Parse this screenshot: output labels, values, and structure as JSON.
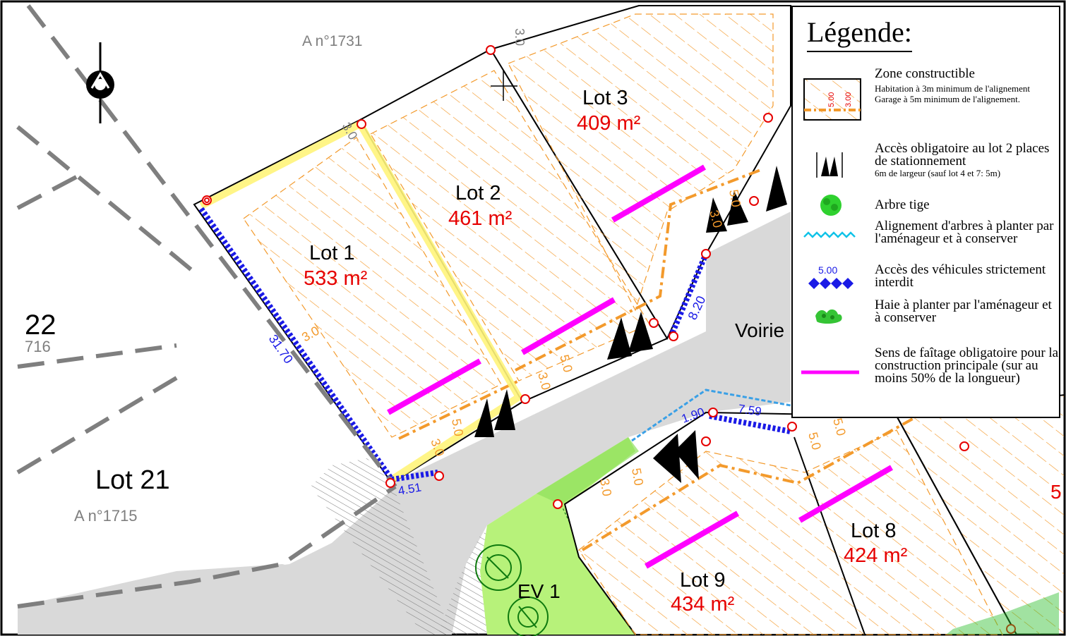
{
  "parcels": {
    "top_ref": "A n°1731",
    "left_ref": "A n°1715",
    "left_lot": "Lot 21",
    "left_number": "22",
    "left_partial_ref": "716"
  },
  "lots": [
    {
      "name": "Lot 1",
      "area": "533 m²"
    },
    {
      "name": "Lot 2",
      "area": "461 m²"
    },
    {
      "name": "Lot 3",
      "area": "409 m²"
    },
    {
      "name": "Lot 8",
      "area": "424 m²"
    },
    {
      "name": "Lot 9",
      "area": "434 m²"
    }
  ],
  "areas": {
    "green_space": "EV 1",
    "road": "Voirie"
  },
  "dimensions": [
    "3.0",
    "3.0",
    "3.0",
    "5.0",
    "3.0",
    "5.0",
    "3.0",
    "5.0",
    "3.0",
    "5.0",
    "3.0",
    "5.0",
    "3.0",
    "5.0",
    "5.0",
    "5.0"
  ],
  "measures": {
    "d1": "31.70",
    "d2": "4.51",
    "d3": "8.20",
    "d4": "1.90",
    "d5": "7.59"
  },
  "edge_fragment": "5",
  "legend": {
    "title": "Légende:",
    "items": [
      {
        "key": "zone",
        "label": "Zone constructible",
        "notes": [
          "Habitation à 3m minimum de l'alignement",
          "Garage à 5m minimum de l'alignement."
        ],
        "sym_values": [
          "5.00",
          "3.00"
        ]
      },
      {
        "key": "access",
        "label": "Accès obligatoire au lot 2 places de stationnement",
        "note": "6m de largeur (sauf lot 4 et 7: 5m)"
      },
      {
        "key": "tree",
        "label": "Arbre tige"
      },
      {
        "key": "tree_row",
        "label": "Alignement d'arbres à planter par l'aménageur et à conserver"
      },
      {
        "key": "no_access",
        "label": "Accès des véhicules strictement interdit",
        "sym_value": "5.00"
      },
      {
        "key": "hedge",
        "label": "Haie à planter par l'aménageur et à conserver"
      },
      {
        "key": "roof",
        "label": "Sens de faîtage obligatoire pour la construction principale (sur au moins 50% de la longueur)"
      }
    ]
  },
  "colors": {
    "lot_label": "#000000",
    "area_label": "#e60000",
    "hatch": "#f39a2c",
    "roof_line": "#ff00ff",
    "no_access": "#1a1ae6",
    "road": "#d9d9d9",
    "green": "#b7f27a",
    "boundary_dash": "#7f7f7f"
  }
}
